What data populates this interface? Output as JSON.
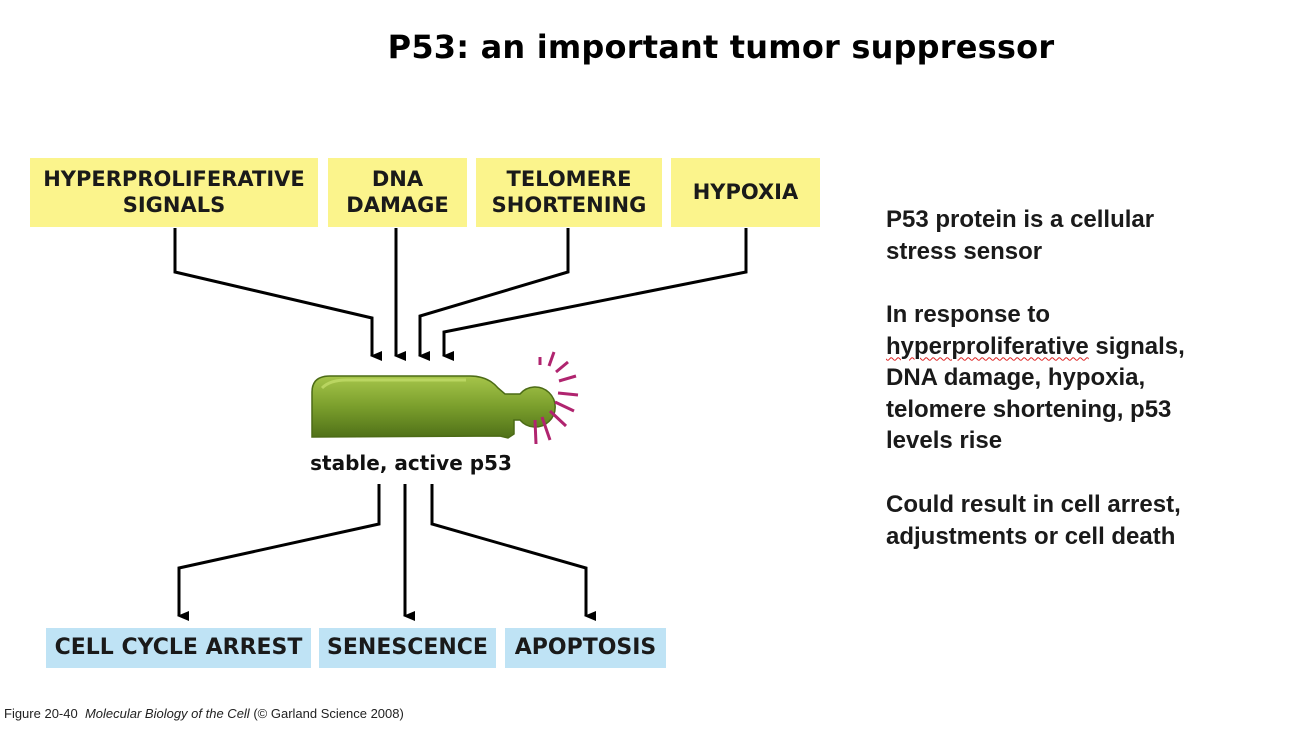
{
  "slide": {
    "title": "P53: an important tumor suppressor"
  },
  "stimuli": [
    {
      "line1": "HYPERPROLIFERATIVE",
      "line2": "SIGNALS"
    },
    {
      "line1": "DNA",
      "line2": "DAMAGE"
    },
    {
      "line1": "TELOMERE",
      "line2": "SHORTENING"
    },
    {
      "line1": "HYPOXIA",
      "line2": ""
    }
  ],
  "center": {
    "label": "stable, active p53"
  },
  "outcomes": [
    {
      "label": "CELL CYCLE ARREST"
    },
    {
      "label": "SENESCENCE"
    },
    {
      "label": "APOPTOSIS"
    }
  ],
  "side_text": {
    "p1_line1": "P53 protein is a cellular",
    "p1_line2": "stress sensor",
    "p2_line1": "In response to",
    "p2_line2a": "hyperproliferative",
    "p2_line2b": " signals,",
    "p2_line3": "DNA damage, hypoxia,",
    "p2_line4": "telomere shortening, p53",
    "p2_line5": "levels rise",
    "p3_line1": "Could result in cell arrest,",
    "p3_line2": "adjustments or cell death"
  },
  "caption": {
    "figure": "Figure 20-40",
    "book": "Molecular Biology of the Cell",
    "credit": "(© Garland Science 2008)"
  },
  "colors": {
    "stimulus_box": "#fbf48c",
    "outcome_box": "#bfe3f5",
    "protein_green": "#7a9e2c",
    "spark_magenta": "#b0246f"
  }
}
